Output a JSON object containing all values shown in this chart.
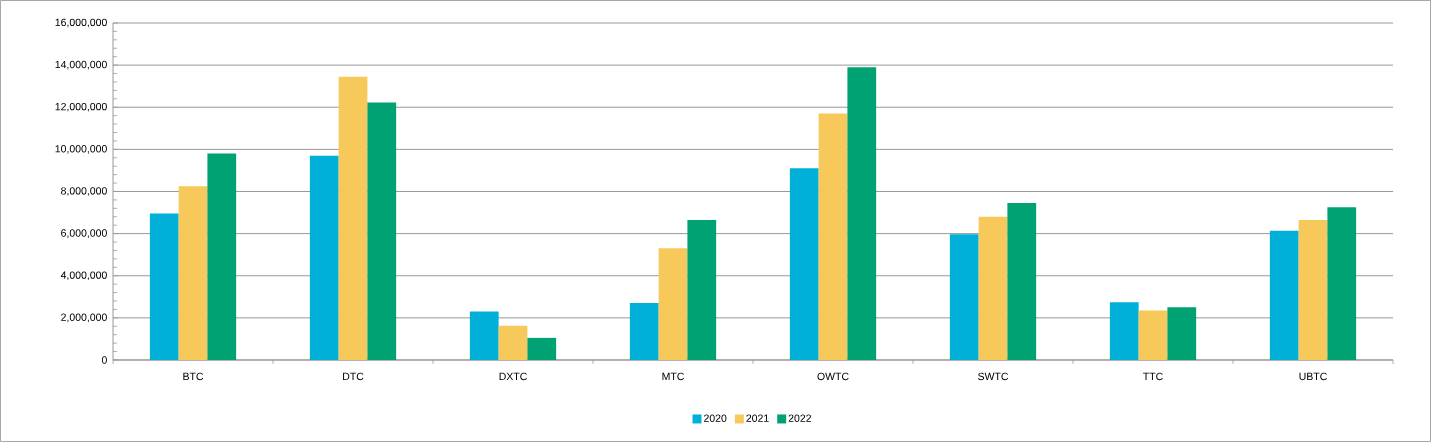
{
  "chart_data": {
    "type": "bar",
    "categories": [
      "BTC",
      "DTC",
      "DXTC",
      "MTC",
      "OWTC",
      "SWTC",
      "TTC",
      "UBTC"
    ],
    "series": [
      {
        "name": "2020",
        "color": "#00b0d8",
        "values": [
          6950000,
          9700000,
          2300000,
          2700000,
          9100000,
          5970000,
          2740000,
          6130000
        ]
      },
      {
        "name": "2021",
        "color": "#f7c95a",
        "values": [
          8250000,
          13450000,
          1620000,
          5300000,
          11700000,
          6800000,
          2350000,
          6650000
        ]
      },
      {
        "name": "2022",
        "color": "#00a274",
        "values": [
          9800000,
          12230000,
          1050000,
          6650000,
          13900000,
          7450000,
          2500000,
          7250000
        ]
      }
    ],
    "ylim": [
      0,
      16000000
    ],
    "yticks": [
      0,
      {
        "value": 2000000,
        "label": "2,000,000"
      },
      {
        "value": 4000000,
        "label": "4,000,000"
      },
      {
        "value": 6000000,
        "label": "6,000,000"
      },
      {
        "value": 8000000,
        "label": "8,000,000"
      },
      {
        "value": 10000000,
        "label": "10,000,000"
      },
      {
        "value": 12000000,
        "label": "12,000,000"
      },
      {
        "value": 14000000,
        "label": "14,000,000"
      },
      {
        "value": 16000000,
        "label": "16,000,000"
      }
    ],
    "grid": "y",
    "legend": "bottom"
  }
}
